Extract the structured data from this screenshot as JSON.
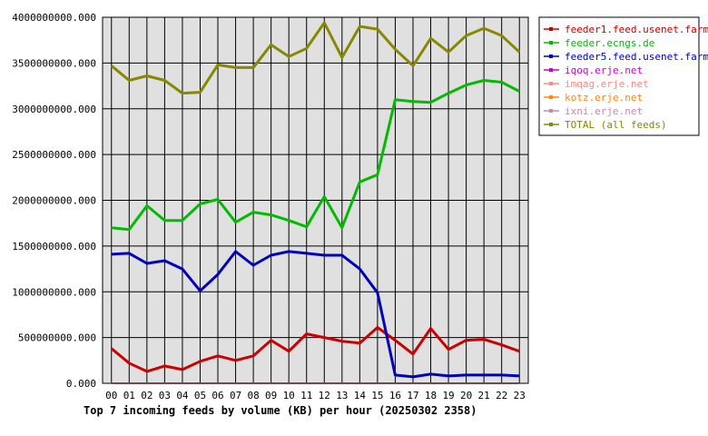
{
  "chart_data": {
    "type": "line",
    "title": "Top 7 incoming feeds by volume (KB) per hour (20250302 2358)",
    "xlabel": "",
    "ylabel": "",
    "ylim": [
      0,
      4000000000
    ],
    "grid": true,
    "legend_position": "right",
    "x": [
      "00",
      "01",
      "02",
      "03",
      "04",
      "05",
      "06",
      "07",
      "08",
      "09",
      "10",
      "11",
      "12",
      "13",
      "14",
      "15",
      "16",
      "17",
      "18",
      "19",
      "20",
      "21",
      "22",
      "23"
    ],
    "y_ticks": [
      "0.000",
      "500000000.000",
      "1000000000.000",
      "1500000000.000",
      "2000000000.000",
      "2500000000.000",
      "3000000000.000",
      "3500000000.000",
      "4000000000.000"
    ],
    "y_tick_values": [
      0,
      500000000,
      1000000000,
      1500000000,
      2000000000,
      2500000000,
      3000000000,
      3500000000,
      4000000000
    ],
    "series": [
      {
        "name": "feeder1.feed.usenet.farm",
        "color": "#cc0000",
        "values": [
          380000000,
          220000000,
          130000000,
          190000000,
          150000000,
          240000000,
          300000000,
          250000000,
          300000000,
          470000000,
          350000000,
          540000000,
          500000000,
          460000000,
          440000000,
          610000000,
          470000000,
          320000000,
          600000000,
          370000000,
          470000000,
          480000000,
          420000000,
          350000000
        ]
      },
      {
        "name": "feeder.ecngs.de",
        "color": "#00bb00",
        "values": [
          1700000000,
          1680000000,
          1940000000,
          1780000000,
          1780000000,
          1960000000,
          2010000000,
          1760000000,
          1870000000,
          1840000000,
          1780000000,
          1710000000,
          2040000000,
          1700000000,
          2200000000,
          2280000000,
          3100000000,
          3080000000,
          3070000000,
          3170000000,
          3260000000,
          3310000000,
          3290000000,
          3190000000
        ]
      },
      {
        "name": "feeder5.feed.usenet.farm",
        "color": "#0000bb",
        "values": [
          1410000000,
          1420000000,
          1310000000,
          1340000000,
          1250000000,
          1010000000,
          1190000000,
          1440000000,
          1290000000,
          1400000000,
          1440000000,
          1420000000,
          1400000000,
          1400000000,
          1250000000,
          990000000,
          90000000,
          70000000,
          100000000,
          80000000,
          90000000,
          90000000,
          90000000,
          80000000
        ]
      },
      {
        "name": "iqoq.erje.net",
        "color": "#cc00cc",
        "values": [
          1000000,
          1000000,
          1000000,
          1000000,
          1000000,
          1000000,
          1000000,
          1000000,
          1000000,
          1000000,
          1000000,
          1000000,
          1000000,
          1000000,
          1000000,
          1000000,
          1000000,
          1000000,
          1000000,
          1000000,
          1000000,
          1000000,
          1000000,
          1000000
        ]
      },
      {
        "name": "imqag.erje.net",
        "color": "#ff8888",
        "values": [
          1000000,
          1000000,
          1000000,
          1000000,
          1000000,
          1000000,
          1000000,
          1000000,
          1000000,
          1000000,
          1000000,
          1000000,
          1000000,
          1000000,
          1000000,
          1000000,
          1000000,
          1000000,
          1000000,
          1000000,
          1000000,
          1000000,
          1000000,
          1000000
        ]
      },
      {
        "name": "kotz.erje.net",
        "color": "#ff8800",
        "values": [
          1000000,
          1000000,
          1000000,
          1000000,
          1000000,
          1000000,
          1000000,
          1000000,
          1000000,
          1000000,
          1000000,
          1000000,
          1000000,
          1000000,
          1000000,
          1000000,
          1000000,
          1000000,
          1000000,
          1000000,
          1000000,
          1000000,
          1000000,
          1000000
        ]
      },
      {
        "name": "ixni.erje.net",
        "color": "#cc88aa",
        "values": [
          1000000,
          1000000,
          1000000,
          1000000,
          1000000,
          1000000,
          1000000,
          1000000,
          1000000,
          1000000,
          1000000,
          1000000,
          1000000,
          1000000,
          1000000,
          1000000,
          1000000,
          1000000,
          1000000,
          1000000,
          1000000,
          1000000,
          1000000,
          1000000
        ]
      },
      {
        "name": "TOTAL (all feeds)",
        "color": "#888800",
        "values": [
          3470000000,
          3310000000,
          3360000000,
          3310000000,
          3170000000,
          3180000000,
          3480000000,
          3450000000,
          3450000000,
          3700000000,
          3570000000,
          3660000000,
          3940000000,
          3560000000,
          3900000000,
          3870000000,
          3650000000,
          3470000000,
          3770000000,
          3620000000,
          3800000000,
          3880000000,
          3800000000,
          3620000000
        ]
      }
    ]
  }
}
